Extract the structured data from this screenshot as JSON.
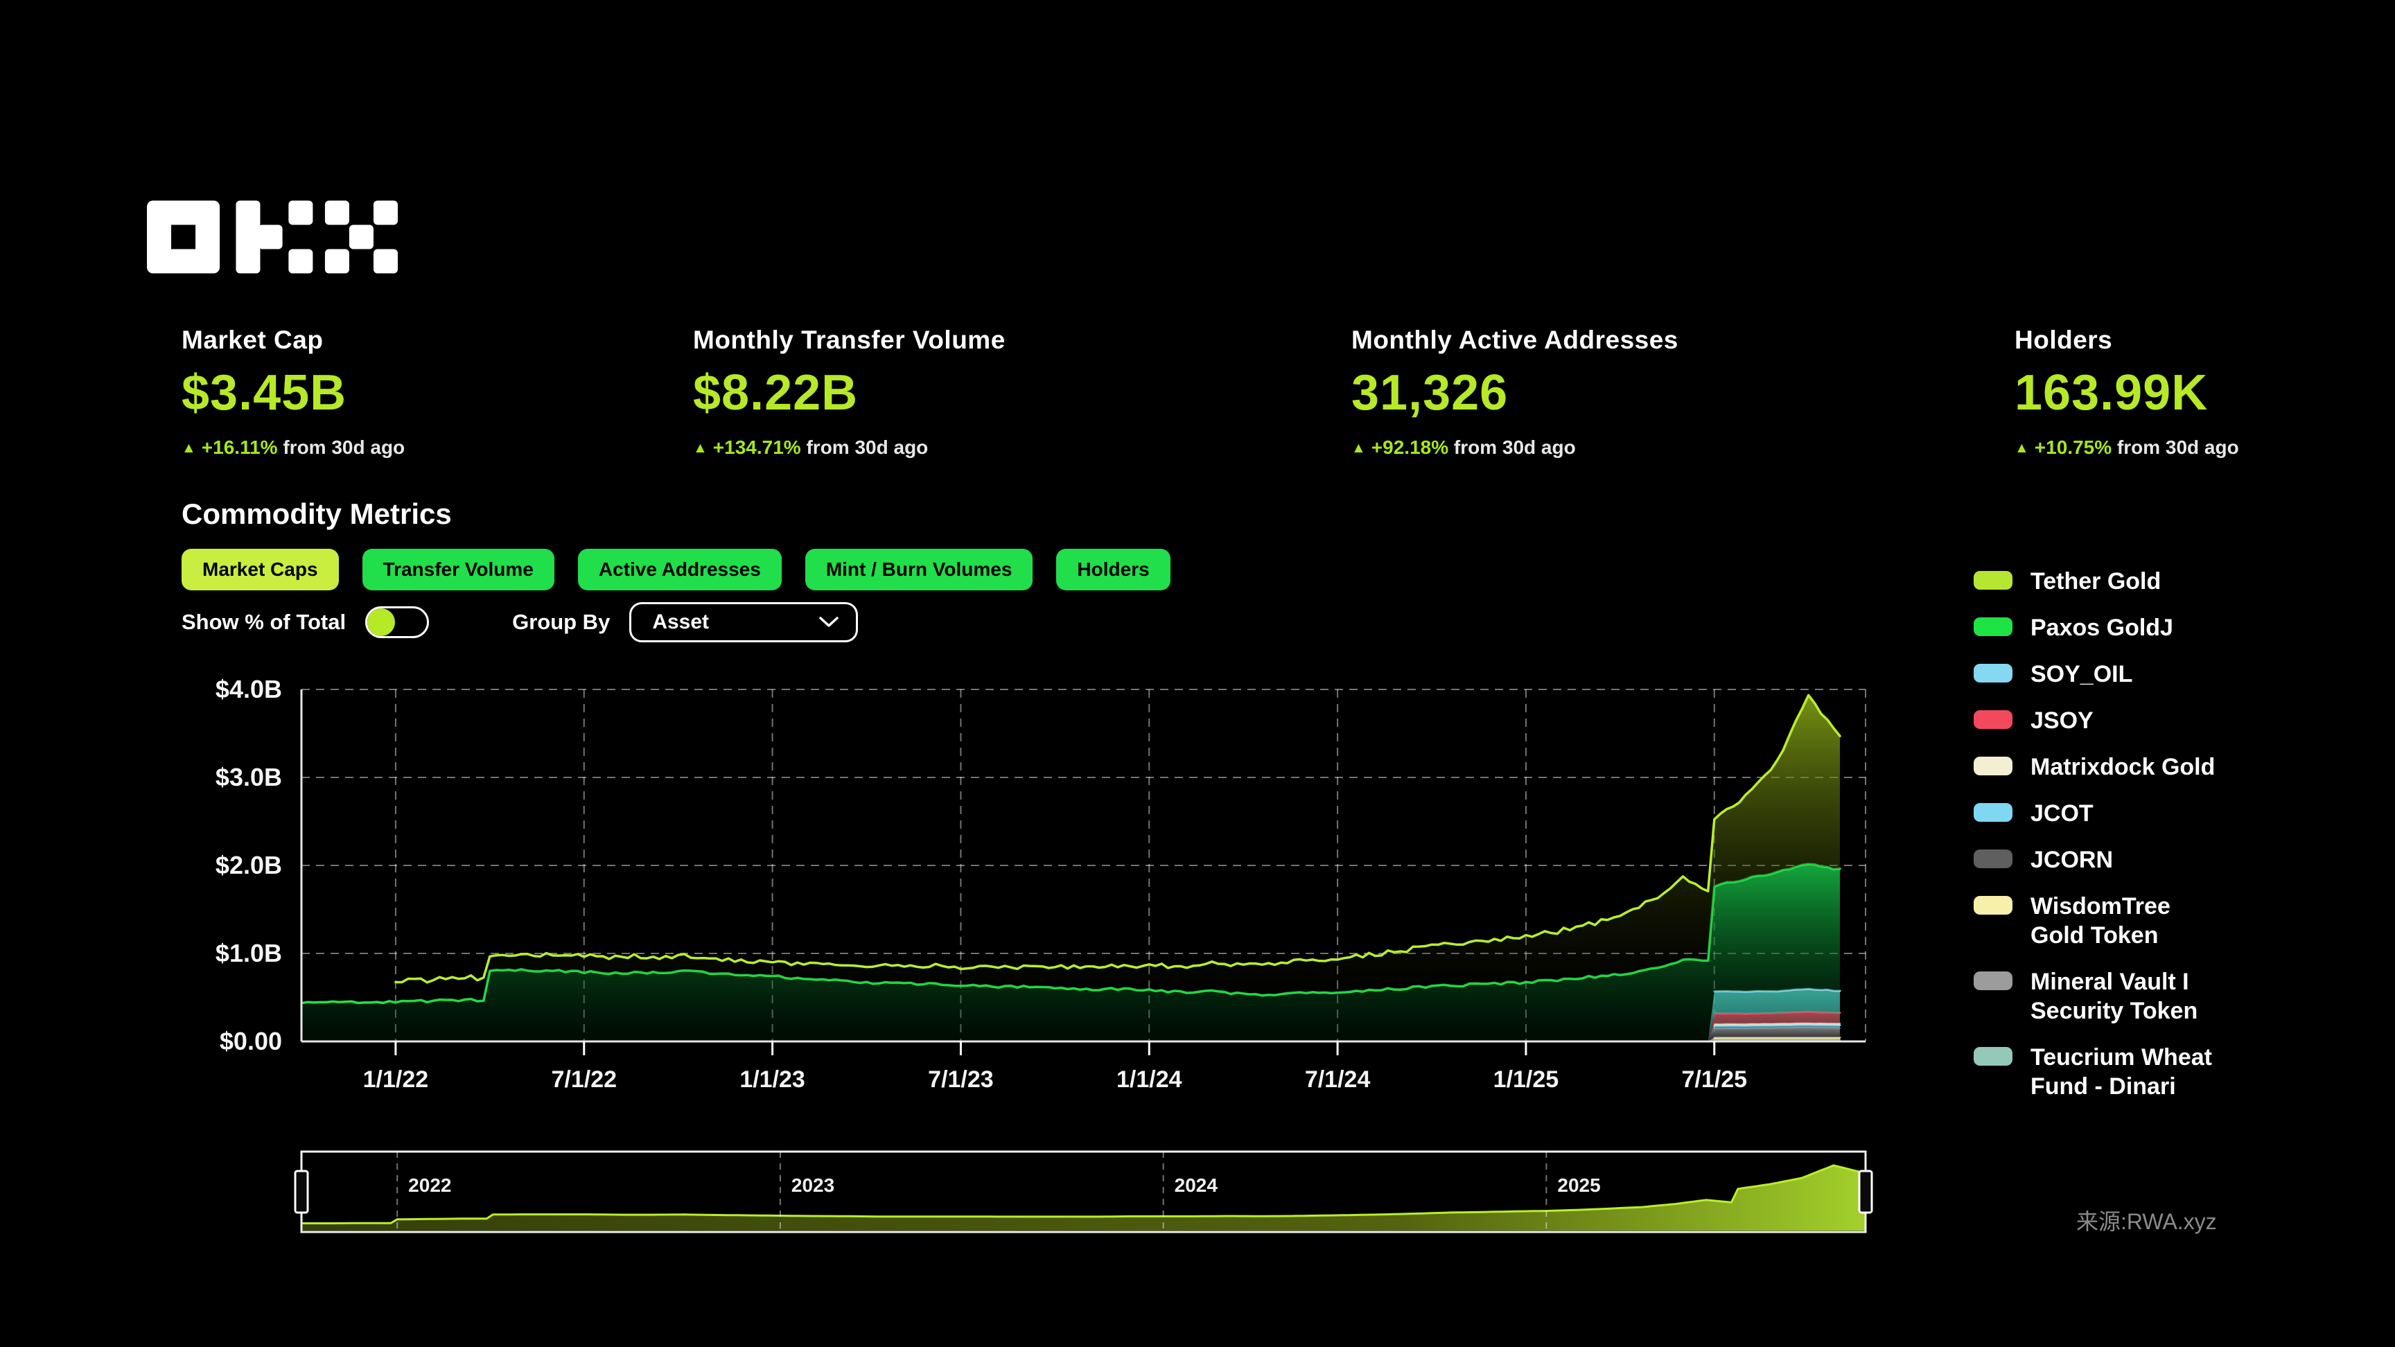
{
  "brand": "OKX",
  "stats": [
    {
      "label": "Market Cap",
      "value": "$3.45B",
      "delta_pct": "+16.11%",
      "delta_suffix": " from 30d ago"
    },
    {
      "label": "Monthly Transfer Volume",
      "value": "$8.22B",
      "delta_pct": "+134.71%",
      "delta_suffix": " from 30d ago"
    },
    {
      "label": "Monthly Active Addresses",
      "value": "31,326",
      "delta_pct": "+92.18%",
      "delta_suffix": " from 30d ago"
    },
    {
      "label": "Holders",
      "value": "163.99K",
      "delta_pct": "+10.75%",
      "delta_suffix": " from 30d ago"
    }
  ],
  "section": {
    "title": "Commodity Metrics"
  },
  "tabs": [
    {
      "label": "Market Caps",
      "active": true
    },
    {
      "label": "Transfer Volume",
      "active": false
    },
    {
      "label": "Active Addresses",
      "active": false
    },
    {
      "label": "Mint / Burn Volumes",
      "active": false
    },
    {
      "label": "Holders",
      "active": false
    }
  ],
  "controls": {
    "toggle_label": "Show % of Total",
    "toggle_on": false,
    "group_by_label": "Group By",
    "group_by_value": "Asset"
  },
  "colors": {
    "accent": "#b6e926",
    "tab_active_bg": "#c9ee3f",
    "tab_bg": "#21de4b",
    "axis": "#e6e6e6",
    "grid": "rgba(255,255,255,0.45)"
  },
  "legend": [
    {
      "label": "Tether Gold",
      "color": "#b5e631"
    },
    {
      "label": "Paxos GoldJ",
      "color": "#1ee345"
    },
    {
      "label": "SOY_OIL",
      "color": "#85d7f2"
    },
    {
      "label": "JSOY",
      "color": "#f4495c"
    },
    {
      "label": "Matrixdock Gold",
      "color": "#f4eed2"
    },
    {
      "label": "JCOT",
      "color": "#7ed8f2"
    },
    {
      "label": "JCORN",
      "color": "#5f5f5f"
    },
    {
      "label": "WisdomTree\nGold Token",
      "color": "#f6f0aa"
    },
    {
      "label": "Mineral Vault I\nSecurity Token",
      "color": "#9c9c9c"
    },
    {
      "label": "Teucrium Wheat\nFund - Dinari",
      "color": "#94c8b9"
    }
  ],
  "source": {
    "text": "来源:RWA.xyz"
  },
  "chart_data": {
    "type": "area",
    "stacked": true,
    "unit": "$B",
    "title": "Commodity Metrics - Market Caps by Asset",
    "ylim": [
      0,
      4
    ],
    "y_ticks": [
      "$0.00",
      "$1.0B",
      "$2.0B",
      "$3.0B",
      "$4.0B"
    ],
    "grid": true,
    "legend_position": "right",
    "months": [
      "2021-10",
      "2021-11",
      "2021-12",
      "2022-01",
      "2022-02",
      "2022-03",
      "2022-04",
      "2022-05",
      "2022-06",
      "2022-07",
      "2022-08",
      "2022-09",
      "2022-10",
      "2022-11",
      "2022-12",
      "2023-01",
      "2023-02",
      "2023-03",
      "2023-04",
      "2023-05",
      "2023-06",
      "2023-07",
      "2023-08",
      "2023-09",
      "2023-10",
      "2023-11",
      "2023-12",
      "2024-01",
      "2024-02",
      "2024-03",
      "2024-04",
      "2024-05",
      "2024-06",
      "2024-07",
      "2024-08",
      "2024-09",
      "2024-10",
      "2024-11",
      "2024-12",
      "2025-01",
      "2025-02",
      "2025-03",
      "2025-04",
      "2025-05",
      "2025-06",
      "2025-07",
      "2025-08",
      "2025-09",
      "2025-10",
      "2025-11"
    ],
    "x_ticks": [
      {
        "label": "1/1/22",
        "month": "2022-01"
      },
      {
        "label": "7/1/22",
        "month": "2022-07"
      },
      {
        "label": "1/1/23",
        "month": "2023-01"
      },
      {
        "label": "7/1/23",
        "month": "2023-07"
      },
      {
        "label": "1/1/24",
        "month": "2024-01"
      },
      {
        "label": "7/1/24",
        "month": "2024-07"
      },
      {
        "label": "1/1/25",
        "month": "2025-01"
      },
      {
        "label": "7/1/25",
        "month": "2025-07"
      }
    ],
    "series": [
      {
        "name": "teucrium_wheat_fund_dinari",
        "legend_label": "Teucrium Wheat Fund - Dinari",
        "line": "#93c9ba",
        "fill_top": "rgba(147,201,186,0.85)",
        "fill_bottom": "rgba(147,201,186,0.55)",
        "width": 2,
        "jitter": 0.001,
        "steps": [
          45
        ],
        "zeros_before": 45,
        "tail": [
          0.01,
          0.01,
          0.01,
          0.01,
          0.01
        ]
      },
      {
        "name": "mineral_vault_i_security_token",
        "legend_label": "Mineral Vault I Security Token",
        "line": "#a9a9a9",
        "fill_top": "rgba(165,165,165,0.85)",
        "fill_bottom": "rgba(120,120,120,0.6)",
        "width": 2,
        "jitter": 0.001,
        "steps": [
          45
        ],
        "zeros_before": 45,
        "tail": [
          0.015,
          0.015,
          0.015,
          0.015,
          0.015
        ]
      },
      {
        "name": "wisdomtree_gold_token",
        "legend_label": "WisdomTree Gold Token",
        "line": "#f6f0ab",
        "fill_top": "rgba(246,240,171,0.85)",
        "fill_bottom": "rgba(246,240,171,0.55)",
        "width": 2.5,
        "jitter": 0.001,
        "steps": [
          45
        ],
        "zeros_before": 45,
        "tail": [
          0.02,
          0.02,
          0.02,
          0.02,
          0.02
        ]
      },
      {
        "name": "jcorn",
        "legend_label": "JCORN",
        "line": "#7a7a7a",
        "fill_top": "rgba(135,135,135,0.9)",
        "fill_bottom": "rgba(55,55,55,0.65)",
        "width": 2,
        "jitter": 0.002,
        "steps": [
          45
        ],
        "zeros_before": 45,
        "tail": [
          0.1,
          0.1,
          0.105,
          0.11,
          0.105
        ]
      },
      {
        "name": "jcot",
        "legend_label": "JCOT",
        "line": "#7cd9f5",
        "fill_top": "rgba(124,217,245,0.65)",
        "fill_bottom": "rgba(124,217,245,0.35)",
        "width": 3,
        "jitter": 0.002,
        "steps": [
          45
        ],
        "zeros_before": 45,
        "tail": [
          0.035,
          0.035,
          0.035,
          0.035,
          0.035
        ]
      },
      {
        "name": "matrixdock_gold",
        "legend_label": "Matrixdock Gold",
        "line": "#f2ecc9",
        "fill_top": "rgba(242,236,201,0.6)",
        "fill_bottom": "rgba(242,236,201,0.35)",
        "width": 2,
        "jitter": 0.001,
        "steps": [
          45
        ],
        "zeros_before": 45,
        "tail": [
          0.02,
          0.02,
          0.02,
          0.02,
          0.02
        ]
      },
      {
        "name": "jsoy",
        "legend_label": "JSOY",
        "line": "#f4485c",
        "fill_top": "rgba(190,85,92,0.85)",
        "fill_bottom": "rgba(150,70,78,0.6)",
        "width": 3,
        "jitter": 0.003,
        "steps": [
          45
        ],
        "zeros_before": 45,
        "tail": [
          0.12,
          0.115,
          0.12,
          0.125,
          0.12
        ]
      },
      {
        "name": "soy_oil",
        "legend_label": "SOY_OIL",
        "line": "#8ed8f2",
        "fill_top": "rgba(62,181,165,0.9)",
        "fill_bottom": "rgba(45,140,128,0.7)",
        "width": 3,
        "jitter": 0.005,
        "steps": [
          45
        ],
        "zeros_before": 45,
        "tail": [
          0.25,
          0.255,
          0.25,
          0.26,
          0.25
        ]
      },
      {
        "name": "paxos_goldj",
        "legend_label": "Paxos GoldJ",
        "line": "#22e24b",
        "fill_top": "rgba(22,185,68,0.9)",
        "fill_bottom": "rgba(0,42,14,0.25)",
        "width": 3.5,
        "jitter": 0.014,
        "steps": [
          6,
          45
        ],
        "values": [
          0.44,
          0.44,
          0.45,
          0.45,
          0.46,
          0.47,
          0.8,
          0.81,
          0.8,
          0.79,
          0.78,
          0.78,
          0.8,
          0.78,
          0.76,
          0.74,
          0.71,
          0.69,
          0.67,
          0.66,
          0.65,
          0.64,
          0.62,
          0.62,
          0.6,
          0.59,
          0.6,
          0.58,
          0.56,
          0.57,
          0.54,
          0.53,
          0.55,
          0.56,
          0.58,
          0.6,
          0.63,
          0.64,
          0.66,
          0.67,
          0.7,
          0.73,
          0.76,
          0.82,
          0.92,
          1.2,
          1.28,
          1.35,
          1.42,
          1.38
        ]
      },
      {
        "name": "tether_gold",
        "legend_label": "Tether Gold",
        "line": "#b9ee2b",
        "fill_top": "rgba(145,178,24,0.82)",
        "fill_bottom": "rgba(10,12,0,0.08)",
        "width": 3.5,
        "jitter": 0.02,
        "steps": [
          3,
          6
        ],
        "values": [
          0,
          0,
          0,
          0.23,
          0.24,
          0.25,
          0.17,
          0.17,
          0.18,
          0.19,
          0.18,
          0.18,
          0.17,
          0.16,
          0.16,
          0.16,
          0.17,
          0.18,
          0.18,
          0.19,
          0.2,
          0.21,
          0.22,
          0.22,
          0.24,
          0.25,
          0.26,
          0.28,
          0.3,
          0.31,
          0.33,
          0.35,
          0.36,
          0.38,
          0.4,
          0.43,
          0.46,
          0.48,
          0.5,
          0.52,
          0.55,
          0.6,
          0.66,
          0.78,
          0.93,
          0.75,
          0.95,
          1.25,
          1.92,
          1.5
        ]
      }
    ],
    "mini": {
      "year_ticks": [
        {
          "label": "2022",
          "month": "2022-01"
        },
        {
          "label": "2023",
          "month": "2023-01"
        },
        {
          "label": "2024",
          "month": "2024-01"
        },
        {
          "label": "2025",
          "month": "2025-01"
        }
      ]
    }
  }
}
